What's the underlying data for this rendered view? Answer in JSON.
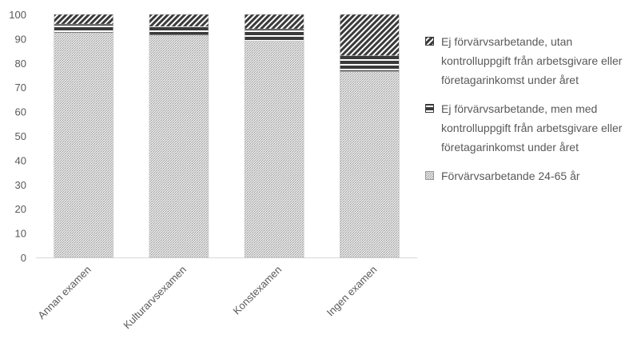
{
  "chart_data": {
    "type": "bar",
    "stacked": true,
    "categories": [
      "Annan examen",
      "Kulturarvsexamen",
      "Konstexamen",
      "Ingen examen"
    ],
    "series": [
      {
        "name": "Förvärvsarbetande 24-65 år",
        "values": [
          92.5,
          91.5,
          89,
          76.5
        ],
        "pattern": "dots"
      },
      {
        "name": "Ej förvärvsarbetande, men med kontrolluppgift från arbetsgivare eller företagarinkomst under året",
        "values": [
          3.5,
          3.5,
          5,
          6.5
        ],
        "pattern": "stripes"
      },
      {
        "name": "Ej förvärvsarbetande, utan kontrolluppgift från arbetsgivare eller företagarinkomst under året",
        "values": [
          4,
          5,
          6,
          17
        ],
        "pattern": "diagonal"
      }
    ],
    "ylim": [
      0,
      100
    ],
    "yticks": [
      "0",
      "10",
      "20",
      "30",
      "40",
      "50",
      "60",
      "70",
      "80",
      "90",
      "100"
    ],
    "legend_position": "right",
    "grid": false,
    "title": "",
    "xlabel": "",
    "ylabel": ""
  }
}
